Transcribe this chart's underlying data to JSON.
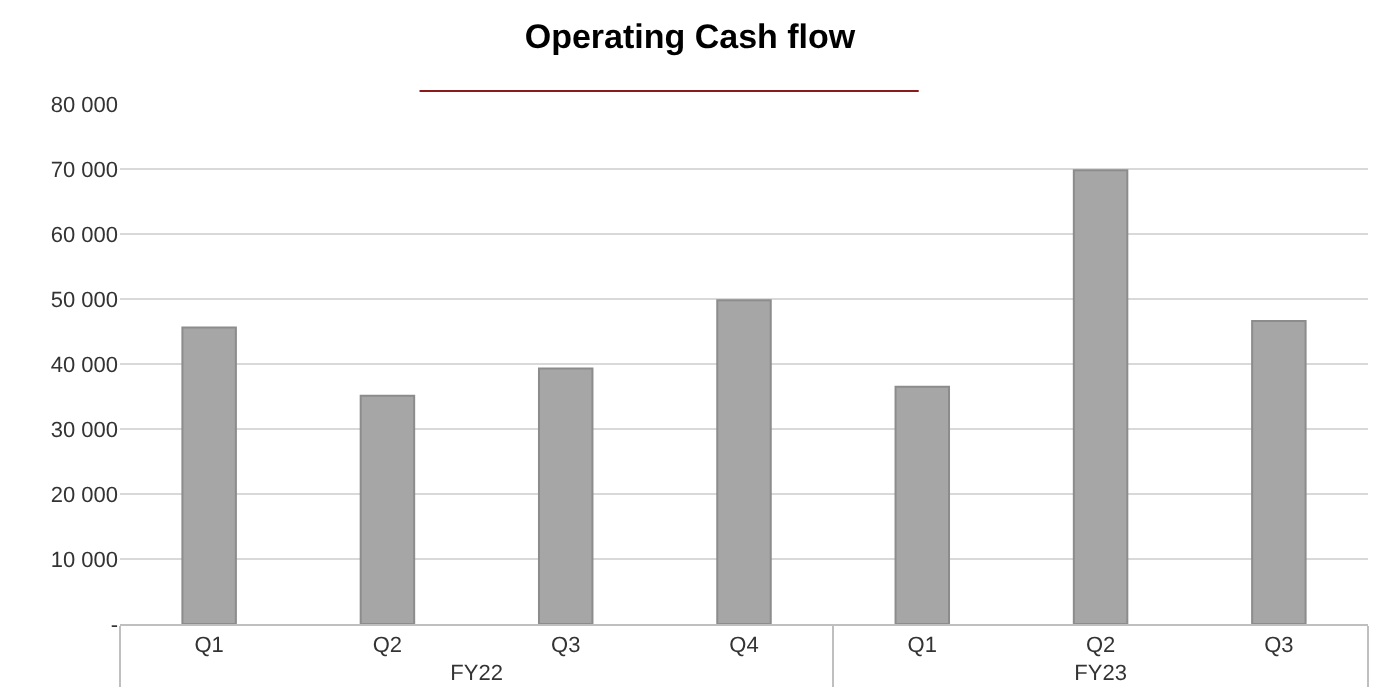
{
  "chart_data": {
    "type": "bar",
    "title": "Operating Cash flow",
    "categories": [
      "Q1",
      "Q2",
      "Q3",
      "Q4",
      "Q1",
      "Q2",
      "Q3"
    ],
    "annotations": [
      "FY22",
      "FY23"
    ],
    "values": [
      45600,
      35100,
      39300,
      49800,
      36500,
      69800,
      46600
    ],
    "color": "#a6a6a6",
    "ylim": [
      0,
      80000
    ],
    "yticks": [
      {
        "value": 0,
        "label": "-"
      },
      {
        "value": 10000,
        "label": "10 000"
      },
      {
        "value": 20000,
        "label": "20 000"
      },
      {
        "value": 30000,
        "label": "30 000"
      },
      {
        "value": 40000,
        "label": "40 000"
      },
      {
        "value": 50000,
        "label": "50 000"
      },
      {
        "value": 60000,
        "label": "60 000"
      },
      {
        "value": 70000,
        "label": "70 000"
      },
      {
        "value": 80000,
        "label": "80 000"
      }
    ],
    "grid": "y"
  }
}
